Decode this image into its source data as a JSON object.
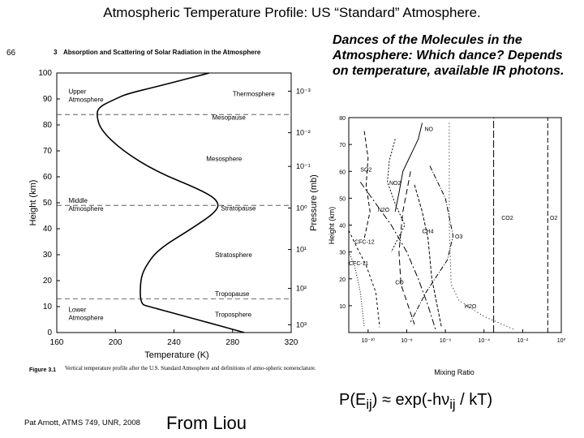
{
  "slide": {
    "title": "Atmospheric Temperature Profile:  US “Standard” Atmosphere.",
    "side_text": "Dances of the Molecules in the Atmosphere:  Which dance?  Depends on temperature, available IR photons.",
    "formula": "P(Eij) ≈ exp(-hνij / kT)",
    "credit": "Pat Arnott, ATMS 749, UNR, 2008",
    "source": "From Liou"
  },
  "book": {
    "page_number": "66",
    "chapter": "3",
    "header": "Absorption and Scattering of Solar Radiation in the Atmosphere",
    "figure_label": "Figure 3.1",
    "caption": "Vertical temperature profile after the U.S. Standard Atmosphere and definitions of atmo-spheric nomenclature."
  },
  "chart_data": [
    {
      "type": "line",
      "xlabel": "Temperature (K)",
      "ylabel": "Height (km)",
      "y2label": "Pressure (mb)",
      "xlim": [
        160,
        320
      ],
      "ylim": [
        0,
        100
      ],
      "xticks": [
        160,
        200,
        240,
        280,
        320
      ],
      "yticks": [
        0,
        10,
        20,
        30,
        40,
        50,
        60,
        70,
        80,
        90,
        100
      ],
      "pressure_ticks": [
        {
          "label": "10⁻³",
          "height": 93
        },
        {
          "label": "10⁻²",
          "height": 77
        },
        {
          "label": "10⁻¹",
          "height": 64
        },
        {
          "label": "10⁰",
          "height": 48
        },
        {
          "label": "10¹",
          "height": 32
        },
        {
          "label": "10²",
          "height": 17
        },
        {
          "label": "10³",
          "height": 3
        }
      ],
      "series": [
        {
          "x": [
            288,
            256,
            223,
            217,
            217,
            220,
            229,
            252,
            270,
            270,
            258,
            228,
            205,
            190,
            187,
            189,
            200,
            208,
            230,
            264
          ],
          "y": [
            0,
            5,
            10,
            11,
            20,
            25,
            32,
            40,
            47,
            51,
            55,
            62,
            70,
            78,
            84,
            87,
            90,
            92,
            95,
            100
          ]
        }
      ],
      "boundaries": [
        {
          "name": "Tropopause",
          "height": 13
        },
        {
          "name": "Stratopause",
          "height": 49
        },
        {
          "name": "Mesopause",
          "height": 84
        }
      ],
      "annotations": [
        "Upper Atmosphere",
        "Thermosphere",
        "Mesopause",
        "Mesosphere",
        "Middle Atmosphere",
        "Stratopause",
        "Stratosphere",
        "Tropopause",
        "Troposphere",
        "Lower Atmosphere"
      ],
      "grid": false
    },
    {
      "type": "line",
      "xlabel": "Mixing Ratio",
      "ylabel": "Height (km)",
      "xscale": "log",
      "xlim": [
        1e-11,
        1
      ],
      "ylim": [
        0,
        80
      ],
      "xticks": [
        "10⁻¹⁰",
        "10⁻⁸",
        "10⁻⁶",
        "10⁻⁴",
        "10⁻²",
        "10⁰"
      ],
      "yticks": [
        10,
        20,
        30,
        40,
        50,
        60,
        70,
        80
      ],
      "series": [
        {
          "name": "NO",
          "x": [
            -7.2,
            -7.4,
            -7.8,
            -8.2,
            -8.4,
            -8.6
          ],
          "y": [
            78,
            72,
            66,
            60,
            52,
            45
          ]
        },
        {
          "name": "SO2",
          "x": [
            -10.2,
            -10.0,
            -10.1,
            -9.9,
            -10.2
          ],
          "y": [
            75,
            65,
            55,
            45,
            35
          ]
        },
        {
          "name": "NO2",
          "x": [
            -8.6,
            -8.9,
            -9.0,
            -8.6,
            -8.1,
            -8.8
          ],
          "y": [
            72,
            64,
            56,
            48,
            40,
            30
          ]
        },
        {
          "name": "N2O",
          "x": [
            -10.4,
            -9.6,
            -8.8,
            -8.0,
            -7.4,
            -6.9,
            -6.5
          ],
          "y": [
            56,
            48,
            40,
            30,
            20,
            10,
            1
          ]
        },
        {
          "name": "CH4",
          "x": [
            -7.6,
            -7.2,
            -6.9,
            -6.7,
            -6.2
          ],
          "y": [
            55,
            45,
            35,
            20,
            2
          ]
        },
        {
          "name": "O3",
          "x": [
            -6.8,
            -6.0,
            -5.6,
            -5.9,
            -7.0,
            -7.8
          ],
          "y": [
            62,
            50,
            36,
            27,
            15,
            4
          ]
        },
        {
          "name": "CFC-12",
          "x": [
            -11.0,
            -10.6,
            -10.1,
            -9.6,
            -9.4
          ],
          "y": [
            38,
            32,
            25,
            15,
            2
          ]
        },
        {
          "name": "CFC-11",
          "x": [
            -11.0,
            -10.7,
            -10.4,
            -10.2
          ],
          "y": [
            30,
            25,
            15,
            2
          ]
        },
        {
          "name": "CO",
          "x": [
            -7.8,
            -8.2,
            -8.4,
            -8.3,
            -7.6
          ],
          "y": [
            60,
            45,
            30,
            18,
            3
          ]
        },
        {
          "name": "H2O",
          "x": [
            -5.8,
            -5.8,
            -5.7,
            -5.3,
            -4.0,
            -2.4
          ],
          "y": [
            78,
            40,
            18,
            12,
            6,
            1
          ]
        },
        {
          "name": "CO2",
          "x": [
            -3.5,
            -3.5
          ],
          "y": [
            0,
            80
          ]
        },
        {
          "name": "O2",
          "x": [
            -0.7,
            -0.7
          ],
          "y": [
            0,
            80
          ]
        }
      ],
      "grid": false
    }
  ]
}
